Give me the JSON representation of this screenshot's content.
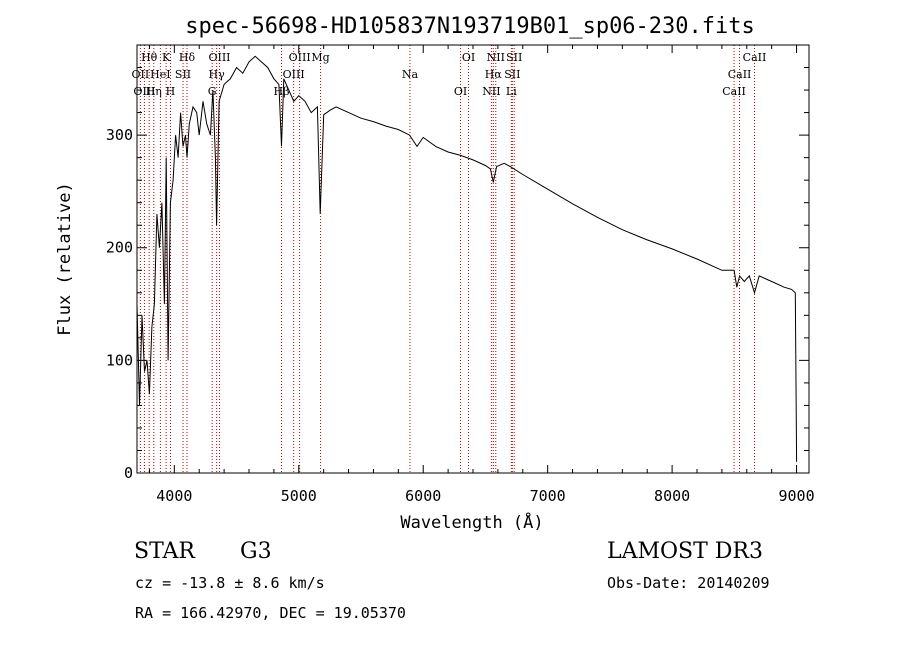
{
  "chart_data": {
    "type": "line",
    "title": "spec-56698-HD105837N193719B01_sp06-230.fits",
    "xlabel": "Wavelength (Å)",
    "ylabel": "Flux (relative)",
    "xlim": [
      3700,
      9100
    ],
    "ylim": [
      0,
      380
    ],
    "xticks": [
      4000,
      5000,
      6000,
      7000,
      8000,
      9000
    ],
    "yticks": [
      0,
      100,
      200,
      300
    ],
    "series": [
      {
        "name": "spectrum",
        "x": [
          3700,
          3720,
          3740,
          3760,
          3780,
          3800,
          3820,
          3840,
          3860,
          3880,
          3900,
          3920,
          3935,
          3950,
          3968,
          3990,
          4010,
          4030,
          4050,
          4070,
          4090,
          4102,
          4120,
          4150,
          4180,
          4200,
          4230,
          4260,
          4290,
          4310,
          4330,
          4340,
          4360,
          4400,
          4450,
          4500,
          4550,
          4600,
          4650,
          4700,
          4750,
          4800,
          4840,
          4861,
          4880,
          4920,
          4960,
          5000,
          5050,
          5100,
          5150,
          5172,
          5200,
          5250,
          5300,
          5400,
          5500,
          5600,
          5700,
          5800,
          5890,
          5950,
          6000,
          6100,
          6200,
          6300,
          6400,
          6500,
          6540,
          6563,
          6590,
          6650,
          6700,
          6800,
          7000,
          7200,
          7400,
          7600,
          7800,
          8000,
          8200,
          8400,
          8498,
          8520,
          8542,
          8580,
          8620,
          8662,
          8700,
          8800,
          8900,
          8960,
          8990,
          9000
        ],
        "values": [
          150,
          60,
          140,
          90,
          100,
          70,
          130,
          150,
          230,
          200,
          240,
          150,
          280,
          100,
          240,
          260,
          300,
          280,
          320,
          290,
          300,
          280,
          310,
          325,
          320,
          300,
          330,
          310,
          300,
          340,
          280,
          220,
          330,
          345,
          350,
          360,
          355,
          365,
          370,
          365,
          360,
          350,
          345,
          290,
          350,
          340,
          330,
          335,
          330,
          320,
          325,
          230,
          318,
          322,
          325,
          320,
          315,
          312,
          308,
          305,
          300,
          290,
          298,
          290,
          285,
          282,
          278,
          273,
          270,
          258,
          272,
          275,
          272,
          265,
          252,
          239,
          227,
          216,
          207,
          199,
          190,
          180,
          180,
          165,
          175,
          170,
          175,
          160,
          175,
          170,
          165,
          163,
          160,
          10
        ]
      }
    ],
    "annotations": [
      {
        "label": "Hθ",
        "x": 3798
      },
      {
        "label": "OII",
        "x": 3727
      },
      {
        "label": "OIII",
        "x": 3760
      },
      {
        "label": "K",
        "x": 3934
      },
      {
        "label": "HeI",
        "x": 3888
      },
      {
        "label": "Hη",
        "x": 3835
      },
      {
        "label": "Hδ",
        "x": 4102
      },
      {
        "label": "SII",
        "x": 4070
      },
      {
        "label": "H",
        "x": 3969
      },
      {
        "label": "OIII",
        "x": 4363
      },
      {
        "label": "Hγ",
        "x": 4340
      },
      {
        "label": "G",
        "x": 4304
      },
      {
        "label": "OIII",
        "x": 5007
      },
      {
        "label": "OIII",
        "x": 4959
      },
      {
        "label": "Hβ",
        "x": 4861
      },
      {
        "label": "Mg",
        "x": 5175
      },
      {
        "label": "Na",
        "x": 5893
      },
      {
        "label": "OI",
        "x": 6300
      },
      {
        "label": "OI",
        "x": 6364
      },
      {
        "label": "Hα",
        "x": 6563
      },
      {
        "label": "NII",
        "x": 6548
      },
      {
        "label": "NII",
        "x": 6583
      },
      {
        "label": "SII",
        "x": 6716
      },
      {
        "label": "Li",
        "x": 6708
      },
      {
        "label": "SII",
        "x": 6731
      },
      {
        "label": "CaII",
        "x": 8542
      },
      {
        "label": "CaII",
        "x": 8498
      },
      {
        "label": "CaII",
        "x": 8662
      }
    ]
  },
  "info": {
    "object_type": "STAR",
    "subclass": "G3",
    "survey": "LAMOST DR3",
    "cz": "cz = -13.8 ± 8.6 km/s",
    "obs_date": "Obs-Date: 20140209",
    "coords": "RA = 166.42970, DEC =  19.05370"
  },
  "colors": {
    "line_marker": "#c00000",
    "spectrum": "#000000"
  }
}
